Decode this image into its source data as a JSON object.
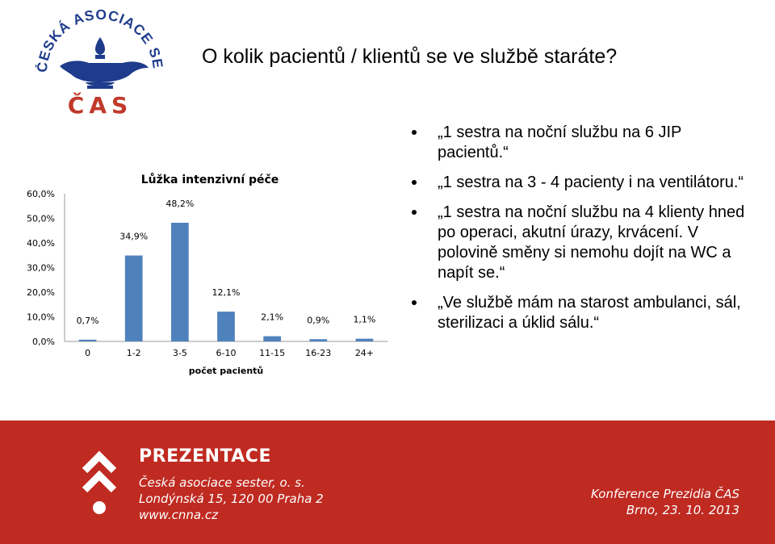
{
  "logo": {
    "ring_text": "ČESKÁ ASOCIACE SESTER",
    "abbrev": "ČAS"
  },
  "title": "O kolik pacientů / klientů se ve službě staráte?",
  "bullets": [
    "„1 sestra na noční službu na 6 JIP pacientů.“",
    "„1 sestra na 3 - 4 pacienty i na ventilátoru.“",
    "„1 sestra na noční službu na 4 klienty hned po operaci, akutní úrazy, krvácení. V polovině směny si nemohu dojít na WC a napít se.“",
    "„Ve službě mám na starost ambulanci, sál, sterilizaci a úklid sálu.“"
  ],
  "chart_data": {
    "type": "bar",
    "title": "Lůžka intenzivní péče",
    "xlabel": "počet pacientů",
    "ylabel": "",
    "categories": [
      "0",
      "1-2",
      "3-5",
      "6-10",
      "11-15",
      "16-23",
      "24+"
    ],
    "values": [
      0.7,
      34.9,
      48.2,
      12.1,
      2.1,
      0.9,
      1.1
    ],
    "value_labels": [
      "0,7%",
      "34,9%",
      "48,2%",
      "12,1%",
      "2,1%",
      "0,9%",
      "1,1%"
    ],
    "yticks": [
      "0,0%",
      "10,0%",
      "20,0%",
      "30,0%",
      "40,0%",
      "50,0%",
      "60,0%"
    ],
    "ylim": [
      0,
      60
    ],
    "grid": false,
    "bar_color": "#4f81bd"
  },
  "footer": {
    "heading": "PREZENTACE",
    "org": "Česká asociace sester, o. s.",
    "address": "Londýnská 15, 120 00 Praha 2",
    "web": "www.cnna.cz",
    "event": "Konference Prezidia ČAS",
    "place_date": "Brno, 23. 10. 2013",
    "background_color": "#bf2a21"
  }
}
